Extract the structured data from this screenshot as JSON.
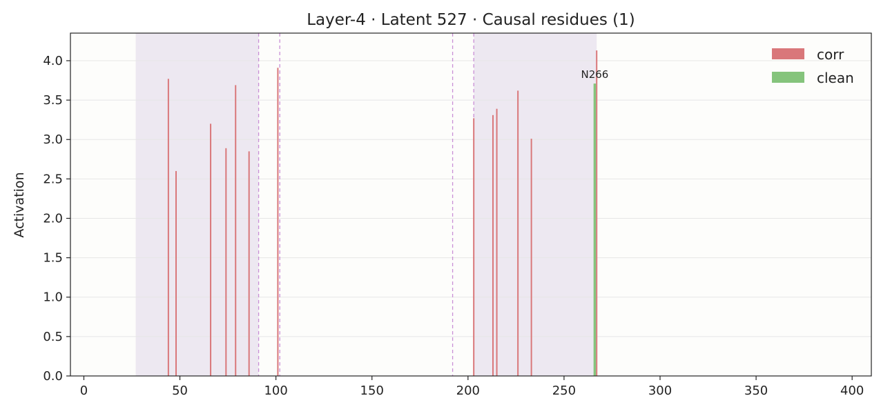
{
  "chart_data": {
    "type": "bar",
    "title": "Layer-4 · Latent 527 · Causal residues (1)",
    "xlabel": "Sequence position",
    "ylabel": "Activation",
    "xlim": [
      -7,
      410
    ],
    "ylim": [
      0,
      4.35
    ],
    "xticks": [
      0,
      50,
      100,
      150,
      200,
      250,
      300,
      350,
      400
    ],
    "yticks": [
      0.0,
      0.5,
      1.0,
      1.5,
      2.0,
      2.5,
      3.0,
      3.5,
      4.0
    ],
    "grid": true,
    "legend_position": "top-right",
    "shaded_regions": [
      [
        27,
        91
      ],
      [
        203,
        267
      ]
    ],
    "dashed_lines": [
      91,
      102,
      192,
      203
    ],
    "series": [
      {
        "name": "corr",
        "color": "#d9777a",
        "points": [
          {
            "x": 44,
            "y": 3.77
          },
          {
            "x": 48,
            "y": 2.6
          },
          {
            "x": 66,
            "y": 3.2
          },
          {
            "x": 74,
            "y": 2.89
          },
          {
            "x": 79,
            "y": 3.69
          },
          {
            "x": 86,
            "y": 2.85
          },
          {
            "x": 101,
            "y": 3.91
          },
          {
            "x": 203,
            "y": 3.27
          },
          {
            "x": 213,
            "y": 3.31
          },
          {
            "x": 215,
            "y": 3.39
          },
          {
            "x": 226,
            "y": 3.62
          },
          {
            "x": 233,
            "y": 3.01
          },
          {
            "x": 267,
            "y": 4.13
          }
        ]
      },
      {
        "name": "clean",
        "color": "#85c47c",
        "points": [
          {
            "x": 266,
            "y": 3.71
          }
        ]
      }
    ],
    "annotations": [
      {
        "text": "N266",
        "x": 266,
        "y": 3.71
      }
    ]
  }
}
